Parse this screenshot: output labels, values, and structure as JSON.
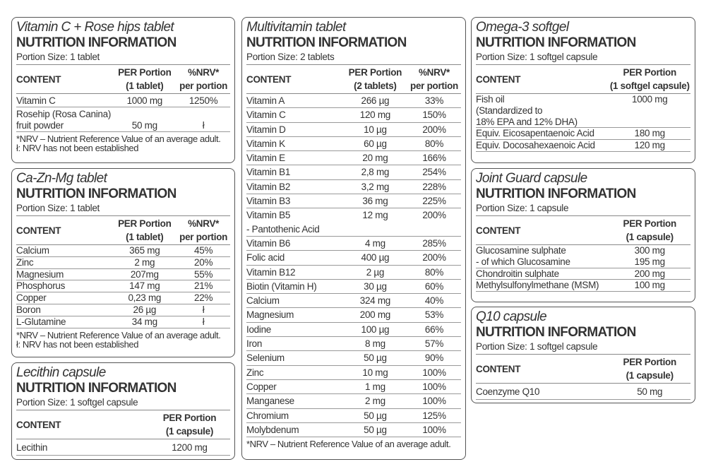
{
  "panels": [
    {
      "title": "Vitamin C + Rose hips tablet",
      "heading": "NUTRITION INFORMATION",
      "portion": "Portion Size: 1 tablet",
      "headers": [
        "CONTENT",
        "PER Portion\n(1 tablet)",
        "%NRV*\nper portion"
      ],
      "rows": [
        [
          "Vitamin C",
          "1000 mg",
          "1250%"
        ],
        [
          "Rosehip (Rosa Canina)\nfruit powder",
          "\n50 mg",
          "\nł"
        ]
      ],
      "footnote": "*NRV – Nutrient Reference Value of an average adult.\nł: NRV has not been established"
    },
    {
      "title": "Ca-Zn-Mg tablet",
      "heading": "NUTRITION INFORMATION",
      "portion": "Portion Size: 1 tablet",
      "headers": [
        "CONTENT",
        "PER Portion\n(1 tablet)",
        "%NRV*\nper portion"
      ],
      "rows": [
        [
          "Calcium",
          "365 mg",
          "45%"
        ],
        [
          "Zinc",
          "2 mg",
          "20%"
        ],
        [
          "Magnesium",
          "207mg",
          "55%"
        ],
        [
          "Phosphorus",
          "147 mg",
          "21%"
        ],
        [
          "Copper",
          "0,23 mg",
          "22%"
        ],
        [
          "Boron",
          "26 µg",
          "ł"
        ],
        [
          "L-Glutamine",
          "34 mg",
          "ł"
        ]
      ],
      "footnote": "*NRV – Nutrient Reference Value of an average adult.\nł: NRV has not been established"
    },
    {
      "title": "Lecithin capsule",
      "heading": "NUTRITION INFORMATION",
      "portion": "Portion Size: 1 softgel capsule",
      "headers": [
        "CONTENT",
        "PER Portion\n(1 capsule)"
      ],
      "rows": [
        [
          "Lecithin",
          "1200 mg"
        ]
      ],
      "footnote": ""
    },
    {
      "title": "Multivitamin tablet",
      "heading": "NUTRITION INFORMATION",
      "portion": "Portion Size: 2 tablets",
      "headers": [
        "CONTENT",
        "PER Portion\n(2 tablets)",
        "%NRV*\nper portion"
      ],
      "rows": [
        [
          "Vitamin A",
          "266 µg",
          "33%"
        ],
        [
          "Vitamin C",
          "120 mg",
          "150%"
        ],
        [
          "Vitamin D",
          "10 µg",
          "200%"
        ],
        [
          "Vitamin K",
          "60 µg",
          "80%"
        ],
        [
          "Vitamin E",
          "20 mg",
          "166%"
        ],
        [
          "Vitamin B1",
          "2,8 mg",
          "254%"
        ],
        [
          "Vitamin B2",
          "3,2 mg",
          "228%"
        ],
        [
          "Vitamin B3",
          "36 mg",
          "225%"
        ],
        [
          "Vitamin B5\n  - Pantothenic Acid",
          "12 mg",
          "200%"
        ],
        [
          "Vitamin B6",
          "4 mg",
          "285%"
        ],
        [
          "Folic acid",
          "400 µg",
          "200%"
        ],
        [
          "Vitamin B12",
          "2 µg",
          "80%"
        ],
        [
          "Biotin (Vitamin H)",
          "30 µg",
          "60%"
        ],
        [
          "Calcium",
          "324 mg",
          "40%"
        ],
        [
          "Magnesium",
          "200 mg",
          "53%"
        ],
        [
          "Iodine",
          "100 µg",
          "66%"
        ],
        [
          "Iron",
          "8 mg",
          "57%"
        ],
        [
          "Selenium",
          "50 µg",
          "90%"
        ],
        [
          "Zinc",
          "10 mg",
          "100%"
        ],
        [
          "Copper",
          "1 mg",
          "100%"
        ],
        [
          "Manganese",
          "2 mg",
          "100%"
        ],
        [
          "Chromium",
          "50 µg",
          "125%"
        ],
        [
          "Molybdenum",
          "50 µg",
          "100%"
        ]
      ],
      "footnote": "*NRV – Nutrient Reference Value of an average adult."
    },
    {
      "title": "Omega-3 softgel",
      "heading": "NUTRITION INFORMATION",
      "portion": "Portion Size: 1 softgel capsule",
      "headers": [
        "CONTENT",
        "PER Portion\n(1 softgel capsule)"
      ],
      "rows": [
        [
          "Fish oil\n  (Standardized to\n  18% EPA and 12% DHA)",
          "1000 mg"
        ],
        [
          "Equiv. Eicosapentaenoic Acid",
          "180 mg"
        ],
        [
          "Equiv. Docosahexaenoic Acid",
          "120 mg"
        ]
      ],
      "footnote": ""
    },
    {
      "title": "Joint Guard capsule",
      "heading": "NUTRITION INFORMATION",
      "portion": "Portion Size: 1 capsule",
      "headers": [
        "CONTENT",
        "PER Portion\n(1 capsule)"
      ],
      "rows": [
        [
          "Glucosamine sulphate\n  - of which Glucosamine",
          "300 mg\n195 mg"
        ],
        [
          "Chondroitin sulphate",
          "200 mg"
        ],
        [
          "Methylsulfonylmethane (MSM)",
          "100 mg"
        ]
      ],
      "footnote": ""
    },
    {
      "title": "Q10 capsule",
      "heading": "NUTRITION INFORMATION",
      "portion": "Portion Size: 1 softgel capsule",
      "headers": [
        "CONTENT",
        "PER Portion\n(1 capsule)"
      ],
      "rows": [
        [
          "Coenzyme Q10",
          "50 mg"
        ]
      ],
      "footnote": ""
    }
  ]
}
